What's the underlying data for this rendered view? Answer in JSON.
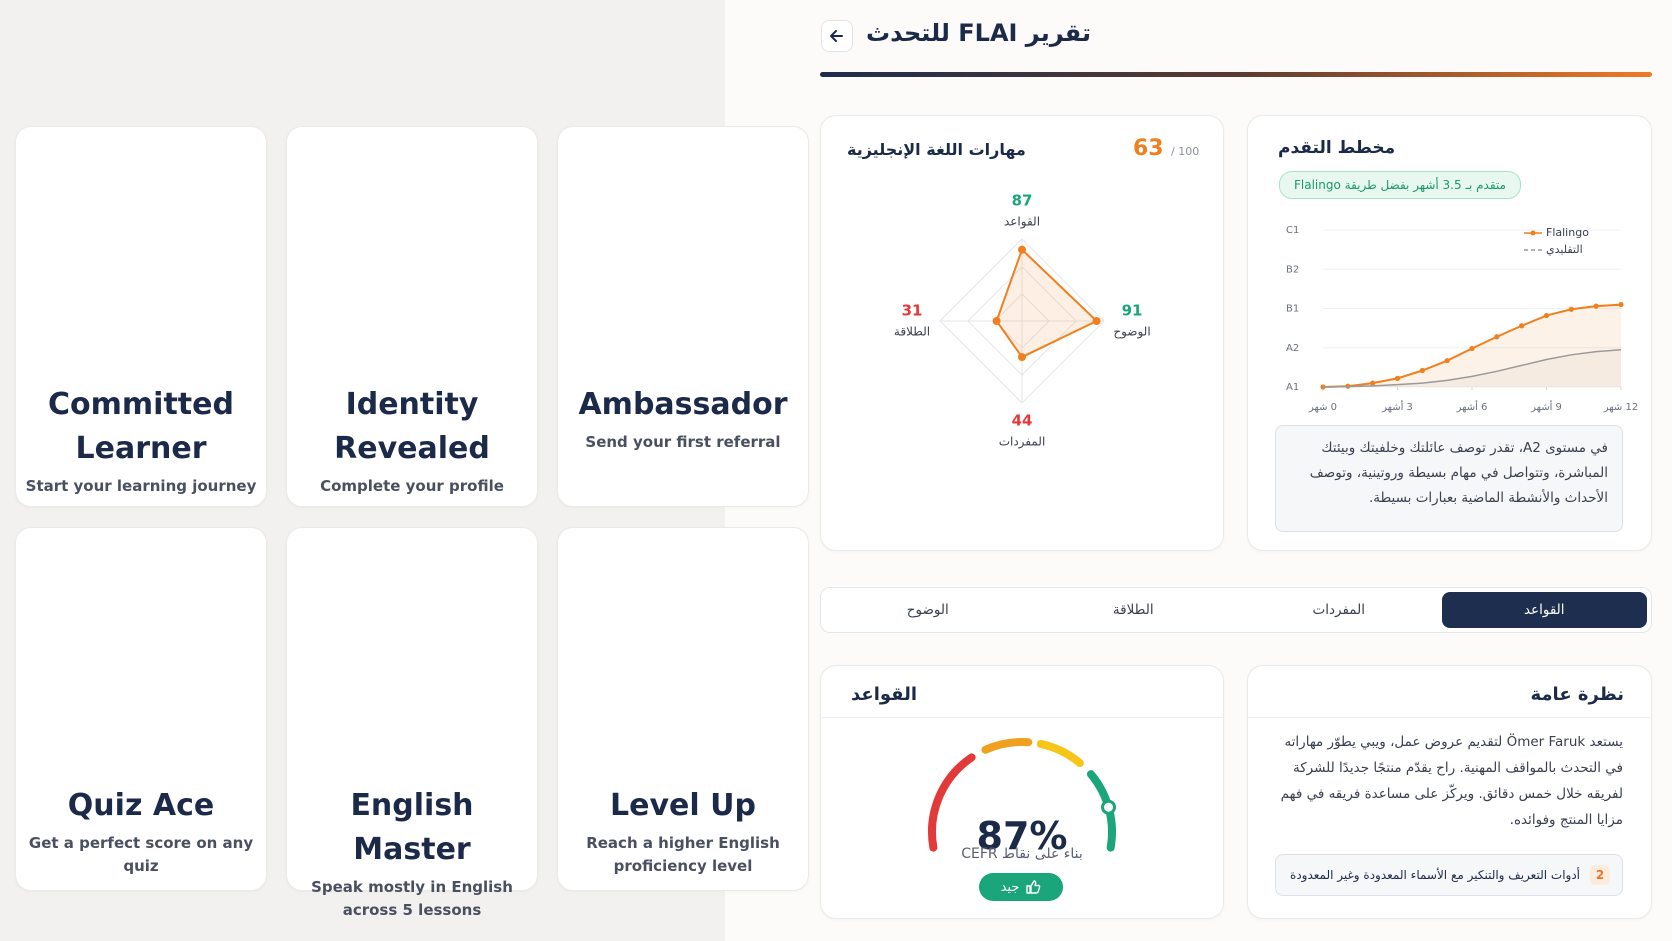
{
  "badges": [
    {
      "title": "Committed Learner",
      "description": "Start your learning journey"
    },
    {
      "title": "Identity Revealed",
      "description": "Complete your profile"
    },
    {
      "title": "Ambassador",
      "description": "Send your first referral"
    },
    {
      "title": "Quiz Ace",
      "description": "Get a perfect score on any quiz"
    },
    {
      "title": "English Master",
      "description": "Speak mostly in English across 5 lessons"
    },
    {
      "title": "Level Up",
      "description": "Reach a higher English proficiency level"
    }
  ],
  "report": {
    "title": "تقرير FLAI للتحدث",
    "skills": {
      "title": "مهارات اللغة الإنجليزية",
      "score": 63,
      "score_max": "/ 100",
      "chart": {
        "type": "radar",
        "categories": [
          "القواعد",
          "الوضوح",
          "المفردات",
          "الطلاقة"
        ],
        "values": [
          87,
          91,
          44,
          31
        ],
        "rlim": [
          0,
          100
        ],
        "color": "#f07f1e",
        "value_colors": [
          "#1aa57a",
          "#1aa57a",
          "#e23a3a",
          "#e23a3a"
        ]
      }
    },
    "progress": {
      "title": "مخطط التقدم",
      "badge": "متقدم بـ 3.5 أشهر بفضل طريقة Flalingo",
      "chart": {
        "type": "line",
        "x": [
          0,
          1,
          2,
          3,
          4,
          5,
          6,
          7,
          8,
          9,
          10,
          11,
          12
        ],
        "series": [
          {
            "name": "Flalingo",
            "color": "#f07f1e",
            "markers": true,
            "values": [
              0,
              0.02,
              0.1,
              0.22,
              0.42,
              0.67,
              0.98,
              1.28,
              1.56,
              1.82,
              1.98,
              2.06,
              2.1
            ]
          },
          {
            "name": "التقليدي",
            "color": "#9a9a9a",
            "dashed": true,
            "values": [
              0,
              0.01,
              0.03,
              0.06,
              0.1,
              0.17,
              0.27,
              0.4,
              0.55,
              0.7,
              0.82,
              0.9,
              0.95
            ]
          }
        ],
        "xlim": [
          0,
          12
        ],
        "xticks": [
          {
            "value": 0,
            "label": "0 شهر"
          },
          {
            "value": 3,
            "label": "3 أشهر"
          },
          {
            "value": 6,
            "label": "6 أشهر"
          },
          {
            "value": 9,
            "label": "9 أشهر"
          },
          {
            "value": 12,
            "label": "12 شهر"
          }
        ],
        "ylim": [
          0,
          4
        ],
        "yticks": [
          {
            "value": 0,
            "label": "A1"
          },
          {
            "value": 1,
            "label": "A2"
          },
          {
            "value": 2,
            "label": "B1"
          },
          {
            "value": 3,
            "label": "B2"
          },
          {
            "value": 4,
            "label": "C1"
          }
        ],
        "grid": true
      },
      "description": "في مستوى A2، تقدر توصف عائلتك وخلفيتك وبيئتك المباشرة، وتتواصل في مهام بسيطة وروتينية، وتوصف الأحداث والأنشطة الماضية بعبارات بسيطة."
    },
    "tabs": [
      "القواعد",
      "المفردات",
      "الطلاقة",
      "الوضوح"
    ],
    "active_tab": 0,
    "grammar": {
      "title": "القواعد",
      "chart": {
        "type": "gauge",
        "value": 87,
        "value_label": "87%",
        "lim": [
          0,
          100
        ]
      },
      "caption": "بناء على نقاط CEFR",
      "rating": "جيد"
    },
    "overview": {
      "title": "نظرة عامة",
      "text": "يستعد Ömer Faruk لتقديم عروض عمل، ويبي يطوّر مهاراته في التحدث بالمواقف المهنية. راح يقدّم منتجًا جديدًا للشركة لفريقه خلال خمس دقائق. ويركّز على مساعدة فريقه في فهم مزايا المنتج وفوائده.",
      "items": [
        {
          "number": 2,
          "text": "أدوات التعريف والتنكير مع الأسماء المعدودة وغير المعدودة"
        }
      ]
    }
  }
}
